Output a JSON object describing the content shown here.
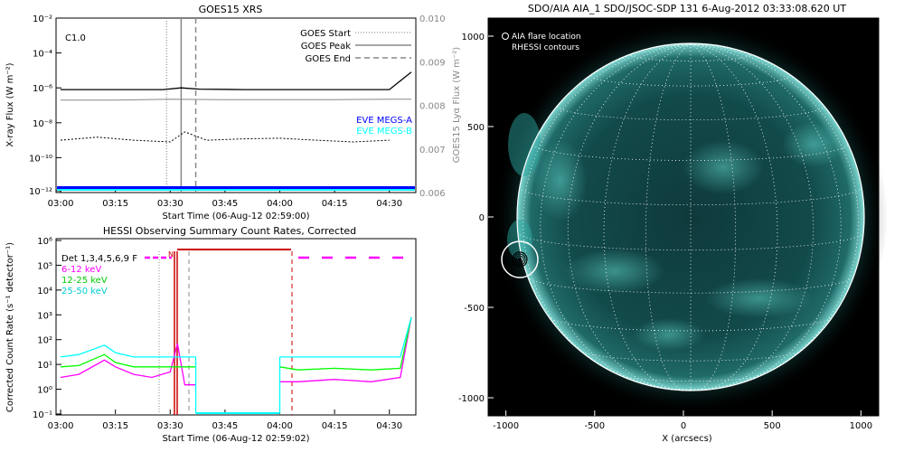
{
  "chart_data": [
    {
      "type": "line",
      "title": "GOES15 XRS",
      "xlabel": "Start Time (06-Aug-12 02:59:00)",
      "ylabel": "X-ray Flux (W m⁻²)",
      "y2label": "GOES15 Lyα Flux (W m⁻²)",
      "x_ticks": [
        "03:00",
        "03:15",
        "03:30",
        "03:45",
        "04:00",
        "04:15",
        "04:30"
      ],
      "y_ticks": [
        "10⁻²",
        "10⁻⁴",
        "10⁻⁶",
        "10⁻⁸",
        "10⁻¹⁰",
        "10⁻¹²"
      ],
      "y2_ticks": [
        "0.010",
        "0.009",
        "0.008",
        "0.007",
        "0.006"
      ],
      "ylim": [
        1e-12,
        0.01
      ],
      "y2lim": [
        0.006,
        0.01
      ],
      "y_scale": "log",
      "flare_class": "C1.0",
      "legend": [
        {
          "label": "GOES Start",
          "style": "dotted"
        },
        {
          "label": "GOES Peak",
          "style": "solid"
        },
        {
          "label": "GOES End",
          "style": "dashed"
        }
      ],
      "eve_labels": [
        {
          "label": "EVE MEGS-A",
          "color": "#0000ff"
        },
        {
          "label": "EVE MEGS-B",
          "color": "#00ffff"
        }
      ],
      "markers_time": {
        "start": "03:29",
        "peak": "03:33",
        "end": "03:37"
      },
      "series": [
        {
          "color": "#000000",
          "x": [
            "03:00",
            "03:10",
            "03:20",
            "03:28",
            "03:33",
            "03:38",
            "03:50",
            "04:10",
            "04:30",
            "04:36"
          ],
          "values": [
            8e-07,
            8e-07,
            8e-07,
            8e-07,
            1e-06,
            8.5e-07,
            8e-07,
            8e-07,
            8e-07,
            8e-06
          ]
        },
        {
          "color": "#888888",
          "x": [
            "03:00",
            "03:15",
            "03:30",
            "03:45",
            "04:00",
            "04:15",
            "04:30",
            "04:36"
          ],
          "values": [
            0.00812,
            0.00812,
            0.00814,
            0.00813,
            0.00813,
            0.00813,
            0.00814,
            0.00814
          ]
        },
        {
          "color": "#000000",
          "style": "dotted",
          "x": [
            "03:00",
            "03:10",
            "03:20",
            "03:30",
            "03:34",
            "03:40",
            "03:50",
            "04:00",
            "04:10",
            "04:20",
            "04:30"
          ],
          "values": [
            1e-09,
            1.5e-09,
            1e-09,
            8e-10,
            3e-09,
            1e-09,
            1.2e-09,
            1.3e-09,
            1e-09,
            8e-10,
            1e-09
          ]
        }
      ]
    },
    {
      "type": "line",
      "title": "HESSI Observing Summary Count Rates, Corrected",
      "xlabel": "Start Time (06-Aug-12 02:59:02)",
      "ylabel": "Corrected Count Rate (s⁻¹ detector⁻¹)",
      "x_ticks": [
        "03:00",
        "03:15",
        "03:30",
        "03:45",
        "04:00",
        "04:15",
        "04:30"
      ],
      "y_ticks": [
        "10⁶",
        "10⁵",
        "10⁴",
        "10³",
        "10²",
        "10¹",
        "10⁰",
        "10⁻¹"
      ],
      "ylim": [
        0.1,
        1000000.0
      ],
      "y_scale": "log",
      "legend": [
        {
          "label": "Det 1,3,4,5,6,9 F",
          "color": "#000000"
        },
        {
          "label": "6-12 keV",
          "color": "#ff00ff"
        },
        {
          "label": "12-25 keV",
          "color": "#00ff00"
        },
        {
          "label": "25-50 keV",
          "color": "#00ffff"
        }
      ],
      "night_label": "N",
      "series": [
        {
          "name": "6-12 keV",
          "color": "#ff00ff",
          "x": [
            "03:00",
            "03:05",
            "03:12",
            "03:15",
            "03:20",
            "03:25",
            "03:30",
            "03:32",
            "03:34",
            "03:37",
            "04:00",
            "04:05",
            "04:15",
            "04:25",
            "04:33",
            "04:36"
          ],
          "values": [
            3,
            4,
            15,
            8,
            4,
            3,
            5,
            70,
            1.5,
            1.5,
            2,
            2,
            2.5,
            2,
            3,
            800
          ]
        },
        {
          "name": "12-25 keV",
          "color": "#00ff00",
          "x": [
            "03:00",
            "03:05",
            "03:12",
            "03:15",
            "03:20",
            "03:25",
            "03:32",
            "03:34",
            "03:37",
            "04:00",
            "04:05",
            "04:15",
            "04:25",
            "04:33",
            "04:36"
          ],
          "values": [
            8,
            9,
            25,
            12,
            8,
            8,
            8,
            8,
            8,
            8,
            6,
            7,
            6,
            7,
            800
          ]
        },
        {
          "name": "25-50 keV",
          "color": "#00ffff",
          "x": [
            "03:00",
            "03:05",
            "03:12",
            "03:15",
            "03:20",
            "03:25",
            "03:32",
            "03:34",
            "03:37",
            "04:00",
            "04:05",
            "04:15",
            "04:25",
            "04:33",
            "04:36"
          ],
          "values": [
            20,
            25,
            60,
            30,
            20,
            20,
            20,
            20,
            20,
            20,
            20,
            20,
            20,
            20,
            800
          ]
        }
      ]
    },
    {
      "type": "heatmap",
      "title": "SDO/AIA AIA_1 SDO/JSOC-SDP 131   6-Aug-2012 03:33:08.620 UT",
      "xlabel": "X (arcsecs)",
      "x_ticks": [
        "-1000",
        "-500",
        "0",
        "500",
        "1000"
      ],
      "y_ticks": [
        "1000",
        "500",
        "0",
        "-500",
        "-1000"
      ],
      "xlim": [
        -1100,
        1100
      ],
      "ylim": [
        -1100,
        1100
      ],
      "legend": [
        {
          "label": "AIA flare location",
          "symbol": "circle"
        },
        {
          "label": "RHESSI contours",
          "symbol": "line"
        }
      ],
      "flare_location": {
        "x": -930,
        "y": -230
      }
    }
  ]
}
